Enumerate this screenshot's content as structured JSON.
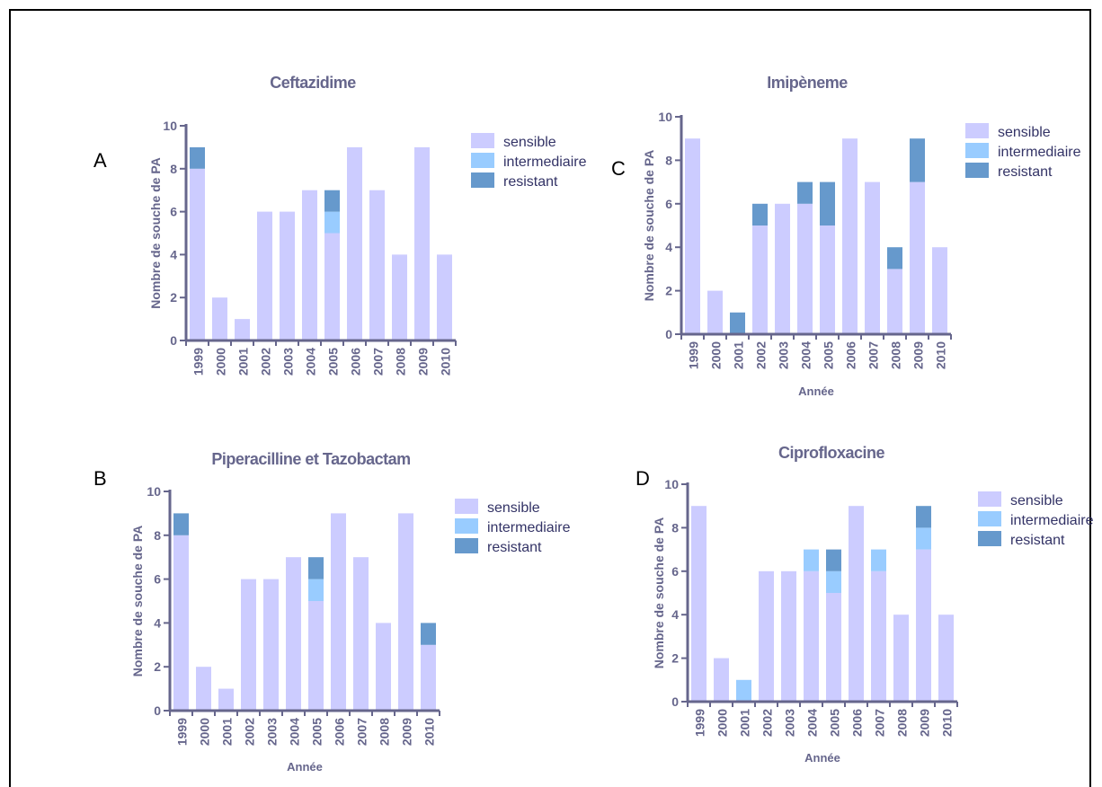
{
  "chart_data": [
    {
      "panel_letter": "A",
      "type": "bar",
      "stacked": true,
      "title": "Ceftazidime",
      "xlabel": "",
      "ylabel": "Nombre de souche de PA",
      "ylim": [
        0,
        10
      ],
      "yticks": [
        "0",
        "2",
        "4",
        "6",
        "8",
        "10"
      ],
      "categories": [
        "1999",
        "2000",
        "2001",
        "2002",
        "2003",
        "2004",
        "2005",
        "2006",
        "2007",
        "2008",
        "2009",
        "2010"
      ],
      "series": [
        {
          "name": "sensible",
          "values": [
            8,
            2,
            1,
            6,
            6,
            7,
            5,
            9,
            7,
            4,
            9,
            4
          ]
        },
        {
          "name": "intermediaire",
          "values": [
            0,
            0,
            0,
            0,
            0,
            0,
            1,
            0,
            0,
            0,
            0,
            0
          ]
        },
        {
          "name": "resistant",
          "values": [
            1,
            0,
            0,
            0,
            0,
            0,
            1,
            0,
            0,
            0,
            0,
            0
          ]
        }
      ]
    },
    {
      "panel_letter": "B",
      "type": "bar",
      "stacked": true,
      "title": "Piperacilline et Tazobactam",
      "xlabel": "Année",
      "ylabel": "Nombre de souche de PA",
      "ylim": [
        0,
        10
      ],
      "yticks": [
        "0",
        "2",
        "4",
        "6",
        "8",
        "10"
      ],
      "categories": [
        "1999",
        "2000",
        "2001",
        "2002",
        "2003",
        "2004",
        "2005",
        "2006",
        "2007",
        "2008",
        "2009",
        "2010"
      ],
      "series": [
        {
          "name": "sensible",
          "values": [
            8,
            2,
            1,
            6,
            6,
            7,
            5,
            9,
            7,
            4,
            9,
            3
          ]
        },
        {
          "name": "intermediaire",
          "values": [
            0,
            0,
            0,
            0,
            0,
            0,
            1,
            0,
            0,
            0,
            0,
            0
          ]
        },
        {
          "name": "resistant",
          "values": [
            1,
            0,
            0,
            0,
            0,
            0,
            1,
            0,
            0,
            0,
            0,
            1
          ]
        }
      ]
    },
    {
      "panel_letter": "C",
      "type": "bar",
      "stacked": true,
      "title": "Imipèneme",
      "xlabel": "Année",
      "ylabel": "Nombre de souche de PA",
      "ylim": [
        0,
        10
      ],
      "yticks": [
        "0",
        "2",
        "4",
        "6",
        "8",
        "10"
      ],
      "categories": [
        "1999",
        "2000",
        "2001",
        "2002",
        "2003",
        "2004",
        "2005",
        "2006",
        "2007",
        "2008",
        "2009",
        "2010"
      ],
      "series": [
        {
          "name": "sensible",
          "values": [
            9,
            2,
            0,
            5,
            6,
            6,
            5,
            9,
            7,
            3,
            7,
            4
          ]
        },
        {
          "name": "intermediaire",
          "values": [
            0,
            0,
            0,
            0,
            0,
            0,
            0,
            0,
            0,
            0,
            0,
            0
          ]
        },
        {
          "name": "resistant",
          "values": [
            0,
            0,
            1,
            1,
            0,
            1,
            2,
            0,
            0,
            1,
            2,
            0
          ]
        }
      ]
    },
    {
      "panel_letter": "D",
      "type": "bar",
      "stacked": true,
      "title": "Ciprofloxacine",
      "xlabel": "Année",
      "ylabel": "Nombre de souche de PA",
      "ylim": [
        0,
        10
      ],
      "yticks": [
        "0",
        "2",
        "4",
        "6",
        "8",
        "10"
      ],
      "categories": [
        "1999",
        "2000",
        "2001",
        "2002",
        "2003",
        "2004",
        "2005",
        "2006",
        "2007",
        "2008",
        "2009",
        "2010"
      ],
      "series": [
        {
          "name": "sensible",
          "values": [
            9,
            2,
            0,
            6,
            6,
            6,
            5,
            9,
            6,
            4,
            7,
            4
          ]
        },
        {
          "name": "intermediaire",
          "values": [
            0,
            0,
            1,
            0,
            0,
            1,
            1,
            0,
            1,
            0,
            1,
            0
          ]
        },
        {
          "name": "resistant",
          "values": [
            0,
            0,
            0,
            0,
            0,
            0,
            1,
            0,
            0,
            0,
            1,
            0
          ]
        }
      ]
    }
  ],
  "colors": {
    "sensible": "#ccccff",
    "intermediaire": "#99ccff",
    "resistant": "#6699cc",
    "axis_text": "#66668c"
  }
}
